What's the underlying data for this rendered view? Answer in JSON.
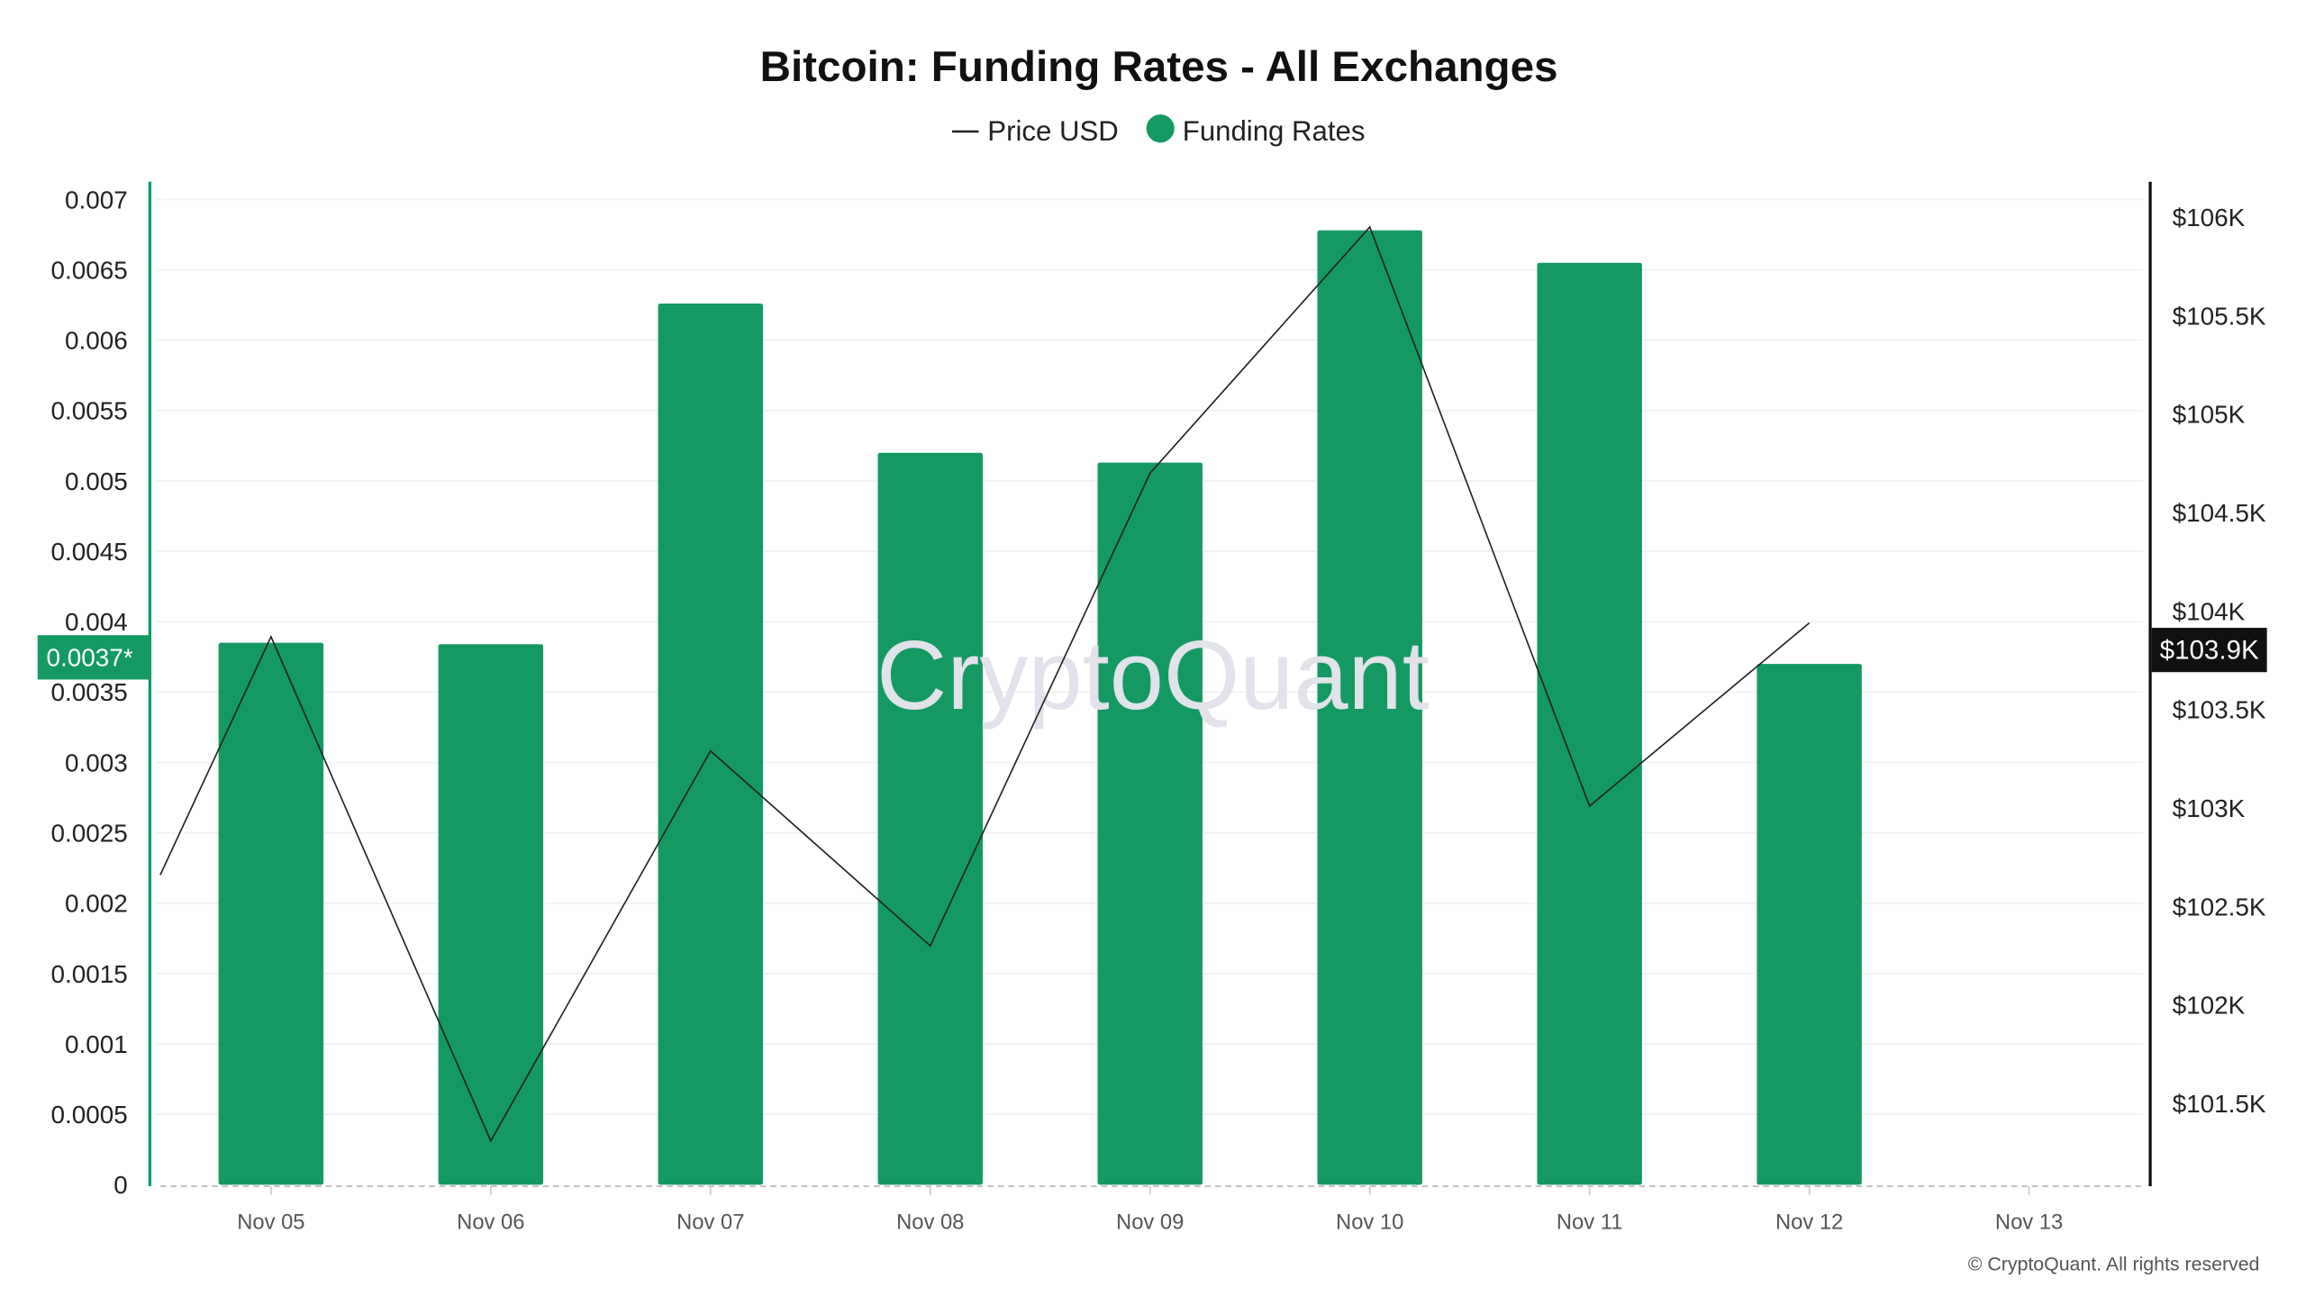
{
  "chart_data": {
    "type": "bar",
    "title": "Bitcoin: Funding Rates - All Exchanges",
    "legend": [
      {
        "label": "Price USD",
        "type": "line",
        "color": "#222222"
      },
      {
        "label": "Funding Rates",
        "type": "bar",
        "color": "#149963"
      }
    ],
    "legend_position": "top-center",
    "categories": [
      "Nov 05",
      "Nov 06",
      "Nov 07",
      "Nov 08",
      "Nov 09",
      "Nov 10",
      "Nov 11",
      "Nov 12",
      "Nov 13"
    ],
    "series": [
      {
        "name": "Funding Rates",
        "axis": "left",
        "type": "bar",
        "values": [
          0.00385,
          0.00384,
          0.00626,
          0.0052,
          0.00513,
          0.00678,
          0.00655,
          0.0037,
          null
        ]
      },
      {
        "name": "Price USD",
        "axis": "right",
        "type": "line",
        "start_value": 102660,
        "values": [
          103870,
          101310,
          103290,
          102300,
          104700,
          105950,
          103010,
          103940,
          null
        ]
      }
    ],
    "y_left": {
      "ylim": [
        0,
        0.007
      ],
      "ticks": [
        "0",
        "0.0005",
        "0.001",
        "0.0015",
        "0.002",
        "0.0025",
        "0.003",
        "0.0035",
        "0.004",
        "0.0045",
        "0.005",
        "0.0055",
        "0.006",
        "0.0065",
        "0.007"
      ]
    },
    "y_right": {
      "ylim": [
        101000,
        106100
      ],
      "ticks": [
        {
          "label": "$101.5K",
          "value": 101500
        },
        {
          "label": "$102K",
          "value": 102000
        },
        {
          "label": "$102.5K",
          "value": 102500
        },
        {
          "label": "$103K",
          "value": 103000
        },
        {
          "label": "$103.5K",
          "value": 103500
        },
        {
          "label": "$104K",
          "value": 104000
        },
        {
          "label": "$104.5K",
          "value": 104500
        },
        {
          "label": "$105K",
          "value": 105000
        },
        {
          "label": "$105.5K",
          "value": 105500
        },
        {
          "label": "$106K",
          "value": 106000
        }
      ]
    },
    "current_left_label": "0.0037*",
    "current_right_label": "$103.9K",
    "grid": true,
    "watermark": "CryptoQuant",
    "copyright": "© CryptoQuant. All rights reserved"
  }
}
